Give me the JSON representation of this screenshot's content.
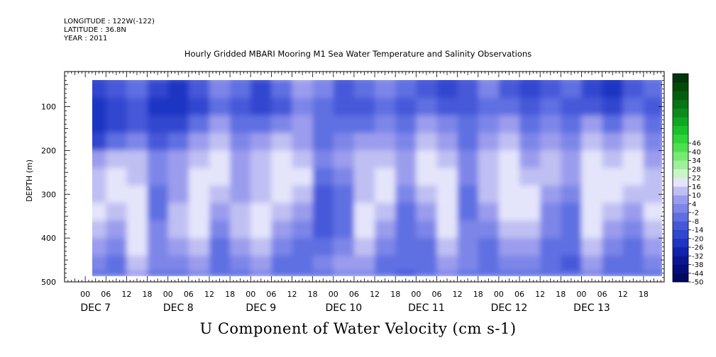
{
  "header": {
    "longitude": "LONGITUDE : 122W(-122)",
    "latitude": "LATITUDE : 36.8N",
    "year": "YEAR : 2011"
  },
  "colors": {
    "negative": [
      "#e4e4fb",
      "#bfbff3",
      "#9b9ced",
      "#7d86e8",
      "#5f6fe2",
      "#4658d9",
      "#3047cf",
      "#1e34c2",
      "#1122ac",
      "#0a1592",
      "#050d78",
      "#020861"
    ],
    "positive": [
      "#c9f5c7",
      "#9fef9b",
      "#78ea74",
      "#4fe04f",
      "#2fd43a",
      "#1bc12c",
      "#10a722",
      "#0b8c1b",
      "#087414",
      "#055e0f",
      "#034a0a",
      "#01350b"
    ]
  },
  "chart_data": {
    "type": "heatmap",
    "title": "Hourly Gridded MBARI Mooring M1 Sea Water Temperature and Salinity Observations",
    "caption": "U Component of Water Velocity (cm s-1)",
    "xlabel": "",
    "ylabel": "DEPTH (m)",
    "ylim": [
      500,
      20
    ],
    "y_ticks": [
      "100",
      "200",
      "300",
      "400",
      "500"
    ],
    "x_hour_ticks": [
      "00",
      "06",
      "12",
      "18",
      "00",
      "06",
      "12",
      "18",
      "00",
      "06",
      "12",
      "18",
      "00",
      "06",
      "12",
      "18",
      "00",
      "06",
      "12",
      "18",
      "00",
      "06",
      "12",
      "18",
      "00",
      "06",
      "12",
      "18"
    ],
    "x_day_labels": [
      "DEC  7",
      "DEC  8",
      "DEC  9",
      "DEC 10",
      "DEC 11",
      "DEC 12",
      "DEC 13"
    ],
    "colorbar_ticks": [
      "46",
      "40",
      "34",
      "28",
      "22",
      "16",
      "10",
      "4",
      "-2",
      "-8",
      "-14",
      "-20",
      "-26",
      "-32",
      "-38",
      "-44",
      "-50"
    ],
    "colorbar_levels": [
      -50,
      -44,
      -38,
      -32,
      -26,
      -20,
      -14,
      -8,
      -2,
      4,
      10,
      16,
      22,
      28,
      34,
      40,
      46,
      52
    ],
    "depth_bins": [
      20,
      60,
      100,
      140,
      180,
      220,
      260,
      300,
      340,
      380,
      420,
      460,
      490
    ],
    "time_bins_hours": [
      3,
      9,
      15,
      21,
      27,
      33,
      39,
      45,
      51,
      57,
      63,
      69,
      75,
      81,
      87,
      93,
      99,
      105,
      111,
      117,
      123,
      129,
      135,
      141,
      147,
      153,
      159,
      165
    ],
    "values_cm_s": [
      [
        -14,
        -8,
        -2,
        -8,
        -14,
        -8,
        4,
        -2,
        -8,
        4,
        10,
        4,
        -8,
        -2,
        4,
        -2,
        -8,
        -14,
        -8,
        4,
        -8,
        -14,
        -8,
        -2,
        -14,
        -20,
        -8,
        -2
      ],
      [
        -20,
        -14,
        -8,
        -20,
        -26,
        -14,
        -2,
        -8,
        -20,
        -8,
        4,
        -2,
        -14,
        -8,
        -2,
        -8,
        -14,
        -20,
        -14,
        -2,
        -14,
        -20,
        -14,
        -8,
        -20,
        -26,
        -14,
        -8
      ],
      [
        -26,
        -20,
        -14,
        -26,
        -26,
        -20,
        -8,
        -14,
        -20,
        -14,
        -2,
        -8,
        -14,
        -14,
        -8,
        -14,
        -8,
        -14,
        -14,
        -8,
        -8,
        -14,
        -8,
        -14,
        -14,
        -20,
        -8,
        -14
      ],
      [
        -26,
        -20,
        -14,
        -20,
        -20,
        -8,
        4,
        -8,
        -8,
        -2,
        4,
        -8,
        -8,
        -8,
        -2,
        -8,
        4,
        -2,
        -8,
        -2,
        4,
        -8,
        -2,
        -8,
        4,
        -8,
        4,
        -8
      ],
      [
        -20,
        -8,
        -2,
        -14,
        -8,
        4,
        10,
        -2,
        4,
        10,
        4,
        -8,
        -2,
        4,
        4,
        -2,
        10,
        4,
        -8,
        4,
        10,
        -2,
        4,
        -2,
        10,
        4,
        10,
        -2
      ],
      [
        4,
        10,
        10,
        -2,
        4,
        10,
        16,
        4,
        10,
        16,
        10,
        -2,
        4,
        10,
        10,
        4,
        16,
        10,
        -2,
        10,
        16,
        4,
        10,
        4,
        16,
        10,
        16,
        4
      ],
      [
        10,
        16,
        10,
        -2,
        4,
        16,
        16,
        4,
        10,
        16,
        16,
        -8,
        -2,
        10,
        16,
        4,
        16,
        16,
        -2,
        10,
        16,
        10,
        10,
        4,
        16,
        16,
        16,
        10
      ],
      [
        10,
        16,
        16,
        -8,
        4,
        16,
        10,
        4,
        10,
        16,
        10,
        -14,
        -8,
        10,
        16,
        -2,
        10,
        16,
        -8,
        10,
        16,
        16,
        4,
        -2,
        16,
        16,
        10,
        10
      ],
      [
        16,
        10,
        16,
        -8,
        10,
        16,
        4,
        10,
        16,
        10,
        4,
        -14,
        -8,
        16,
        10,
        -8,
        4,
        16,
        -8,
        4,
        16,
        16,
        -2,
        -8,
        16,
        10,
        4,
        16
      ],
      [
        10,
        4,
        16,
        -2,
        10,
        16,
        -2,
        10,
        16,
        4,
        -2,
        -14,
        -8,
        16,
        4,
        -8,
        -2,
        16,
        -2,
        -2,
        10,
        10,
        -2,
        -8,
        16,
        4,
        -2,
        10
      ],
      [
        4,
        -2,
        16,
        -2,
        4,
        10,
        -8,
        4,
        10,
        -2,
        -8,
        -8,
        -2,
        10,
        -2,
        -8,
        -8,
        10,
        -2,
        -8,
        4,
        4,
        -8,
        -8,
        10,
        -2,
        -8,
        4
      ],
      [
        -2,
        -8,
        10,
        -2,
        -2,
        4,
        -8,
        -2,
        4,
        -8,
        -8,
        -2,
        4,
        4,
        -8,
        -8,
        -8,
        4,
        -2,
        -8,
        -2,
        -2,
        -8,
        -14,
        4,
        -8,
        -8,
        -2
      ],
      [
        -8,
        -8,
        4,
        -8,
        -8,
        -2,
        -8,
        -8,
        -2,
        -8,
        -8,
        -8,
        -2,
        -2,
        -8,
        -14,
        -8,
        -2,
        -8,
        -8,
        -8,
        -8,
        -8,
        -8,
        -2,
        -8,
        -8,
        -8
      ]
    ]
  }
}
